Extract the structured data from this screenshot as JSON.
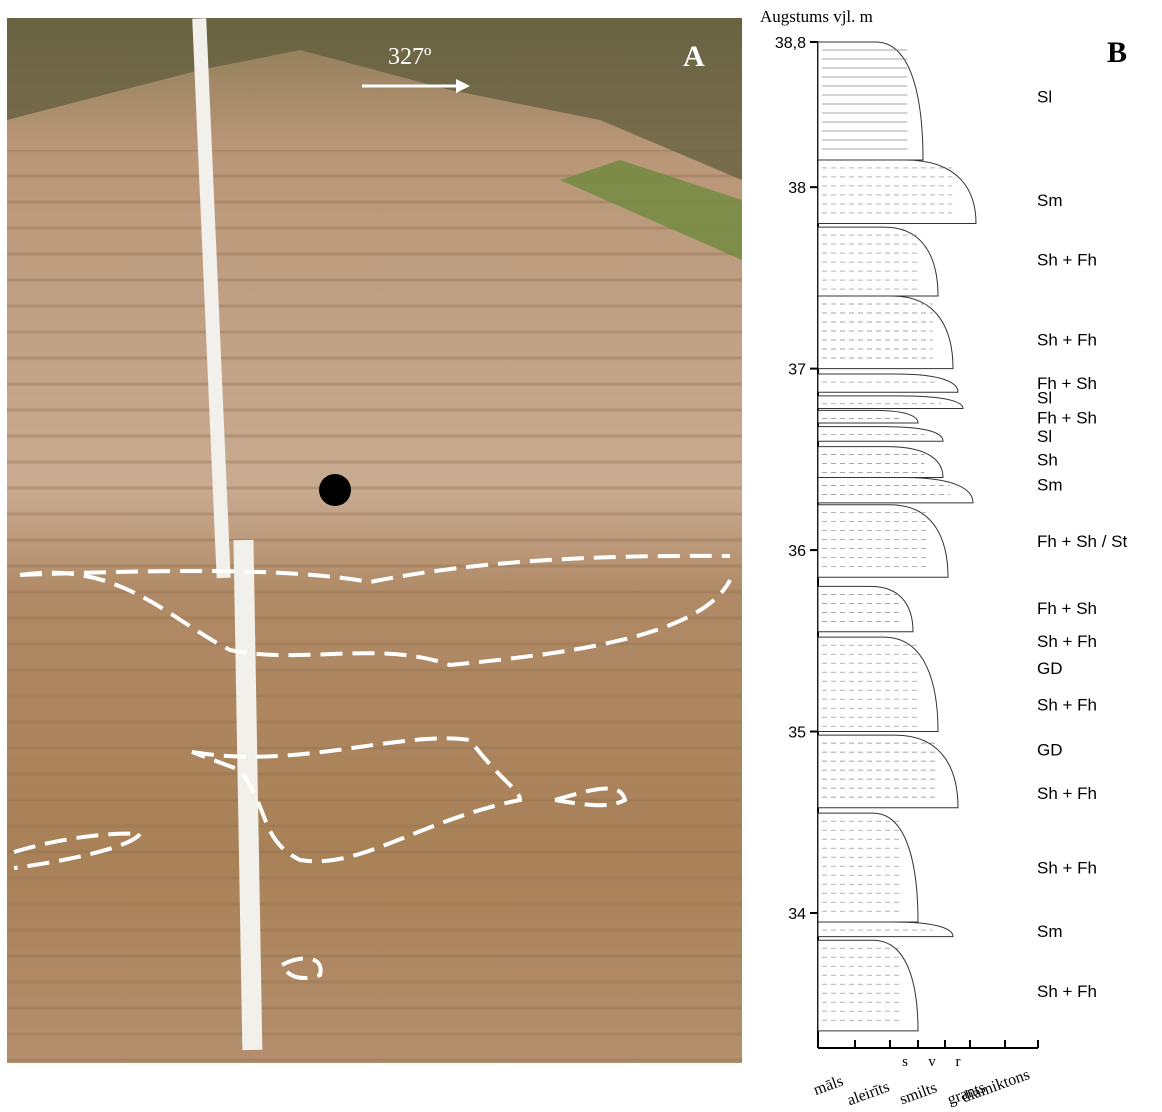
{
  "photo": {
    "panel_label": "A",
    "direction": "327º"
  },
  "log": {
    "panel_label": "B",
    "y_label": "Augstums vjl. m",
    "yticks": [
      {
        "value": 38.8,
        "label": "38,8"
      },
      38,
      37,
      36,
      35,
      34
    ],
    "ylim": [
      33.3,
      38.8
    ],
    "x_labels": [
      "māls",
      "aleirīts",
      "smilts",
      "grants",
      "diamiktons"
    ],
    "x_sublabels": [
      "s",
      "v",
      "r"
    ],
    "layers": [
      [
        38.8,
        38.15
      ],
      [
        38.15,
        37.8
      ],
      [
        37.78,
        37.4
      ],
      [
        37.4,
        37.0
      ],
      [
        36.97,
        36.87
      ],
      [
        36.85,
        36.78
      ],
      [
        36.77,
        36.7
      ],
      [
        36.68,
        36.6
      ],
      [
        36.57,
        36.4
      ],
      [
        36.4,
        36.26
      ],
      [
        36.25,
        35.85
      ],
      [
        35.8,
        35.55
      ],
      [
        35.52,
        35.0
      ],
      [
        34.98,
        34.58
      ],
      [
        34.55,
        33.95
      ],
      [
        33.95,
        33.87
      ],
      [
        33.85,
        33.35
      ]
    ],
    "facies": [
      {
        "text": "Sl",
        "height": 38.5
      },
      {
        "text": "Sm",
        "height": 37.93
      },
      {
        "text": "Sh + Fh",
        "height": 37.6
      },
      {
        "text": "Sh + Fh",
        "height": 37.16
      },
      {
        "text": "Fh + Sh",
        "height": 36.92
      },
      {
        "text": "Sl",
        "height": 36.84
      },
      {
        "text": "Fh + Sh",
        "height": 36.73
      },
      {
        "text": "Sl",
        "height": 36.63
      },
      {
        "text": "Sh",
        "height": 36.5
      },
      {
        "text": "Sm",
        "height": 36.36
      },
      {
        "text": "Fh + Sh / St",
        "height": 36.05
      },
      {
        "text": "Fh + Sh",
        "height": 35.68
      },
      {
        "text": "Sh + Fh",
        "height": 35.5
      },
      {
        "text": "GD",
        "height": 35.35
      },
      {
        "text": "Sh + Fh",
        "height": 35.15
      },
      {
        "text": "GD",
        "height": 34.9
      },
      {
        "text": "Sh + Fh",
        "height": 34.66
      },
      {
        "text": "Sh + Fh",
        "height": 34.25
      },
      {
        "text": "Sm",
        "height": 33.9
      },
      {
        "text": "Sh + Fh",
        "height": 33.57
      }
    ]
  }
}
